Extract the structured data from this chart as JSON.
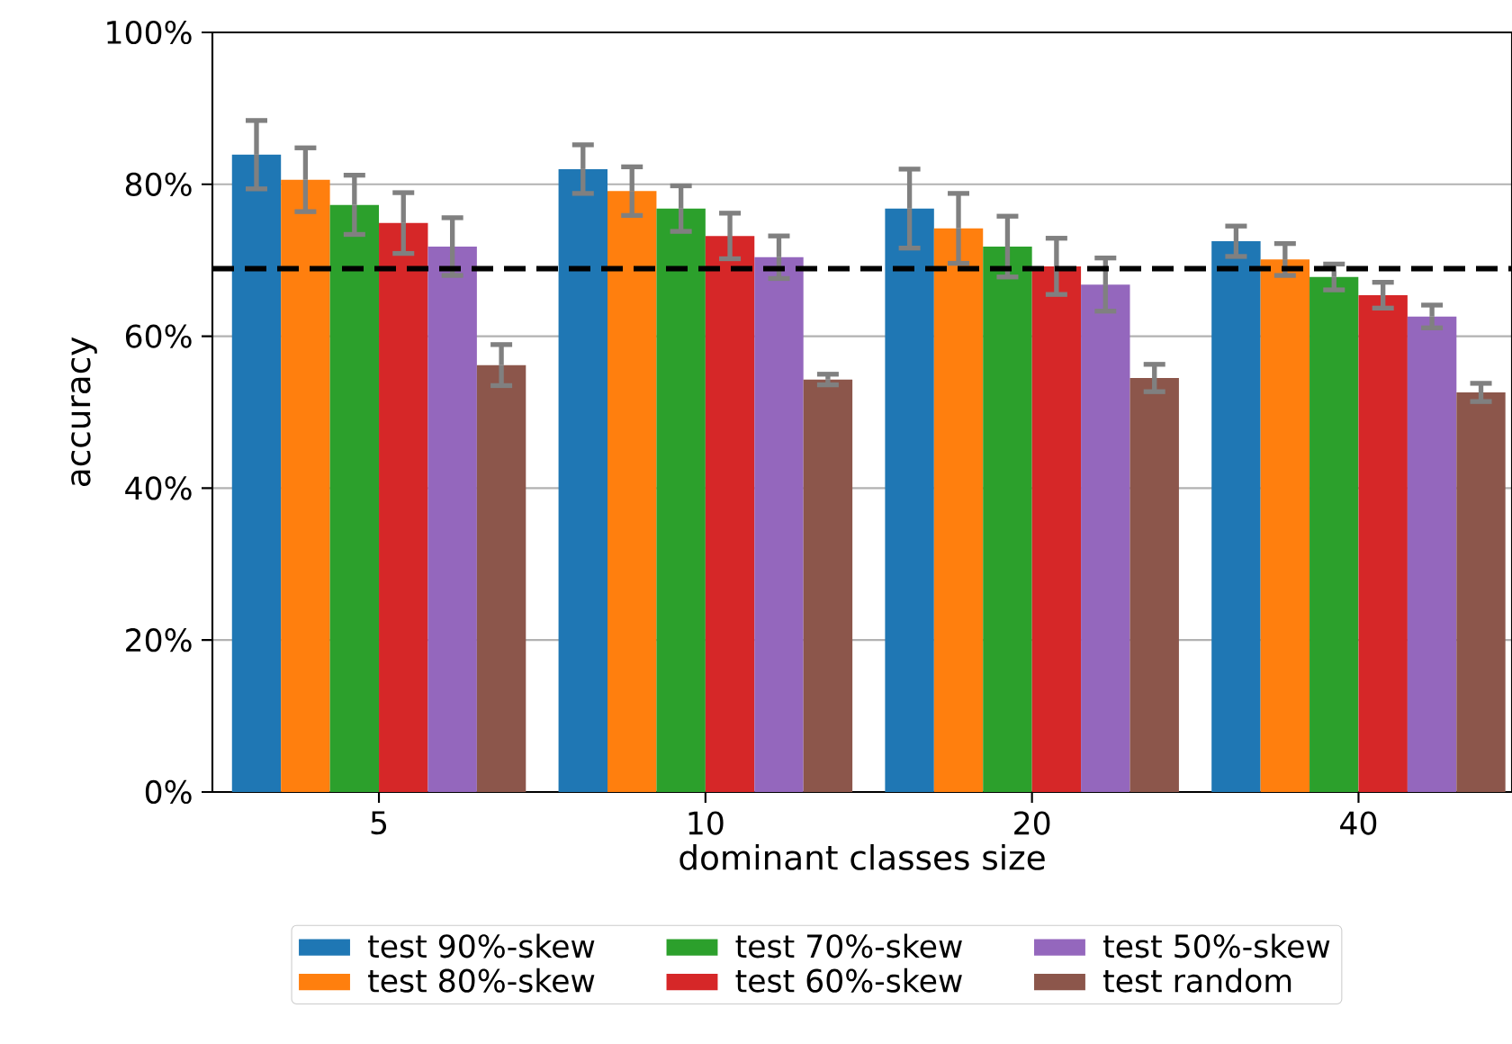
{
  "chart_data": {
    "type": "bar",
    "xlabel": "dominant classes size",
    "ylabel": "accuracy",
    "categories": [
      "5",
      "10",
      "20",
      "40"
    ],
    "series": [
      {
        "name": "test 90%-skew",
        "color": "#1f77b4",
        "values": [
          83.9,
          82.0,
          76.8,
          72.5
        ],
        "errors": [
          4.5,
          3.2,
          5.2,
          2.0
        ]
      },
      {
        "name": "test 80%-skew",
        "color": "#ff7f0e",
        "values": [
          80.6,
          79.1,
          74.2,
          70.1
        ],
        "errors": [
          4.2,
          3.2,
          4.6,
          2.1
        ]
      },
      {
        "name": "test 70%-skew",
        "color": "#2ca02c",
        "values": [
          77.3,
          76.8,
          71.8,
          67.8
        ],
        "errors": [
          3.9,
          3.0,
          4.0,
          1.7
        ]
      },
      {
        "name": "test 60%-skew",
        "color": "#d62728",
        "values": [
          74.9,
          73.2,
          69.2,
          65.4
        ],
        "errors": [
          4.0,
          3.0,
          3.7,
          1.7
        ]
      },
      {
        "name": "test 50%-skew",
        "color": "#9467bd",
        "values": [
          71.8,
          70.4,
          66.8,
          62.6
        ],
        "errors": [
          3.8,
          2.8,
          3.5,
          1.5
        ]
      },
      {
        "name": "test random",
        "color": "#8c564b",
        "values": [
          56.2,
          54.3,
          54.5,
          52.6
        ],
        "errors": [
          2.7,
          0.7,
          1.8,
          1.2
        ]
      }
    ],
    "ylim": [
      0,
      100
    ],
    "yticks": [
      {
        "value": 0,
        "label": "0%"
      },
      {
        "value": 20,
        "label": "20%"
      },
      {
        "value": 40,
        "label": "40%"
      },
      {
        "value": 60,
        "label": "60%"
      },
      {
        "value": 80,
        "label": "80%"
      },
      {
        "value": 100,
        "label": "100%"
      }
    ],
    "ref_lines": [
      {
        "axis": "y",
        "value": 68.9,
        "color": "#000000",
        "line_style": "dashed"
      }
    ],
    "grid": "y",
    "legend": "bottom"
  }
}
